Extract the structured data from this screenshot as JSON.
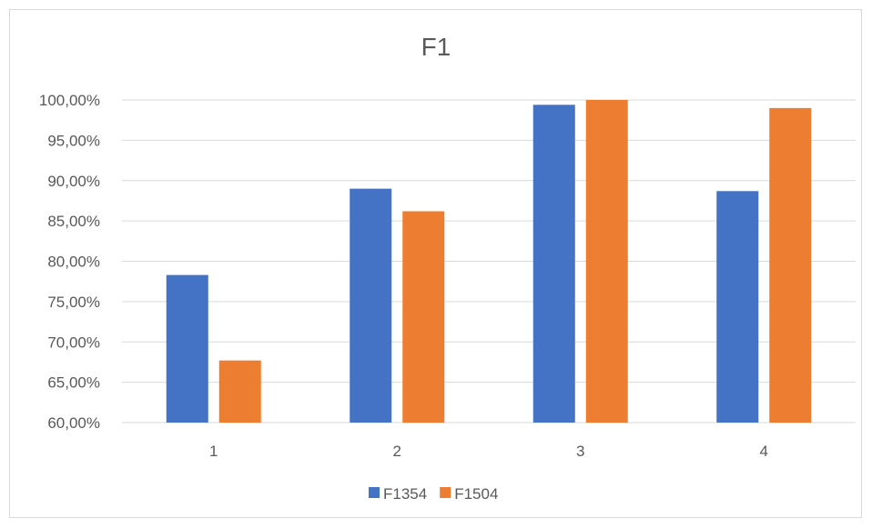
{
  "chart_data": {
    "type": "bar",
    "title": "F1",
    "xlabel": "",
    "ylabel": "",
    "categories": [
      "1",
      "2",
      "3",
      "4"
    ],
    "series": [
      {
        "name": "F1354",
        "color": "#4472c4",
        "values": [
          78.3,
          89.0,
          99.4,
          88.7
        ]
      },
      {
        "name": "F1504",
        "color": "#ed7d31",
        "values": [
          67.7,
          86.2,
          100.0,
          99.0
        ]
      }
    ],
    "ylim": [
      60,
      100
    ],
    "yticks": [
      60,
      65,
      70,
      75,
      80,
      85,
      90,
      95,
      100
    ],
    "ytick_labels": [
      "60,00%",
      "65,00%",
      "70,00%",
      "75,00%",
      "80,00%",
      "85,00%",
      "90,00%",
      "95,00%",
      "100,00%"
    ],
    "grid": true,
    "legend_position": "bottom"
  }
}
